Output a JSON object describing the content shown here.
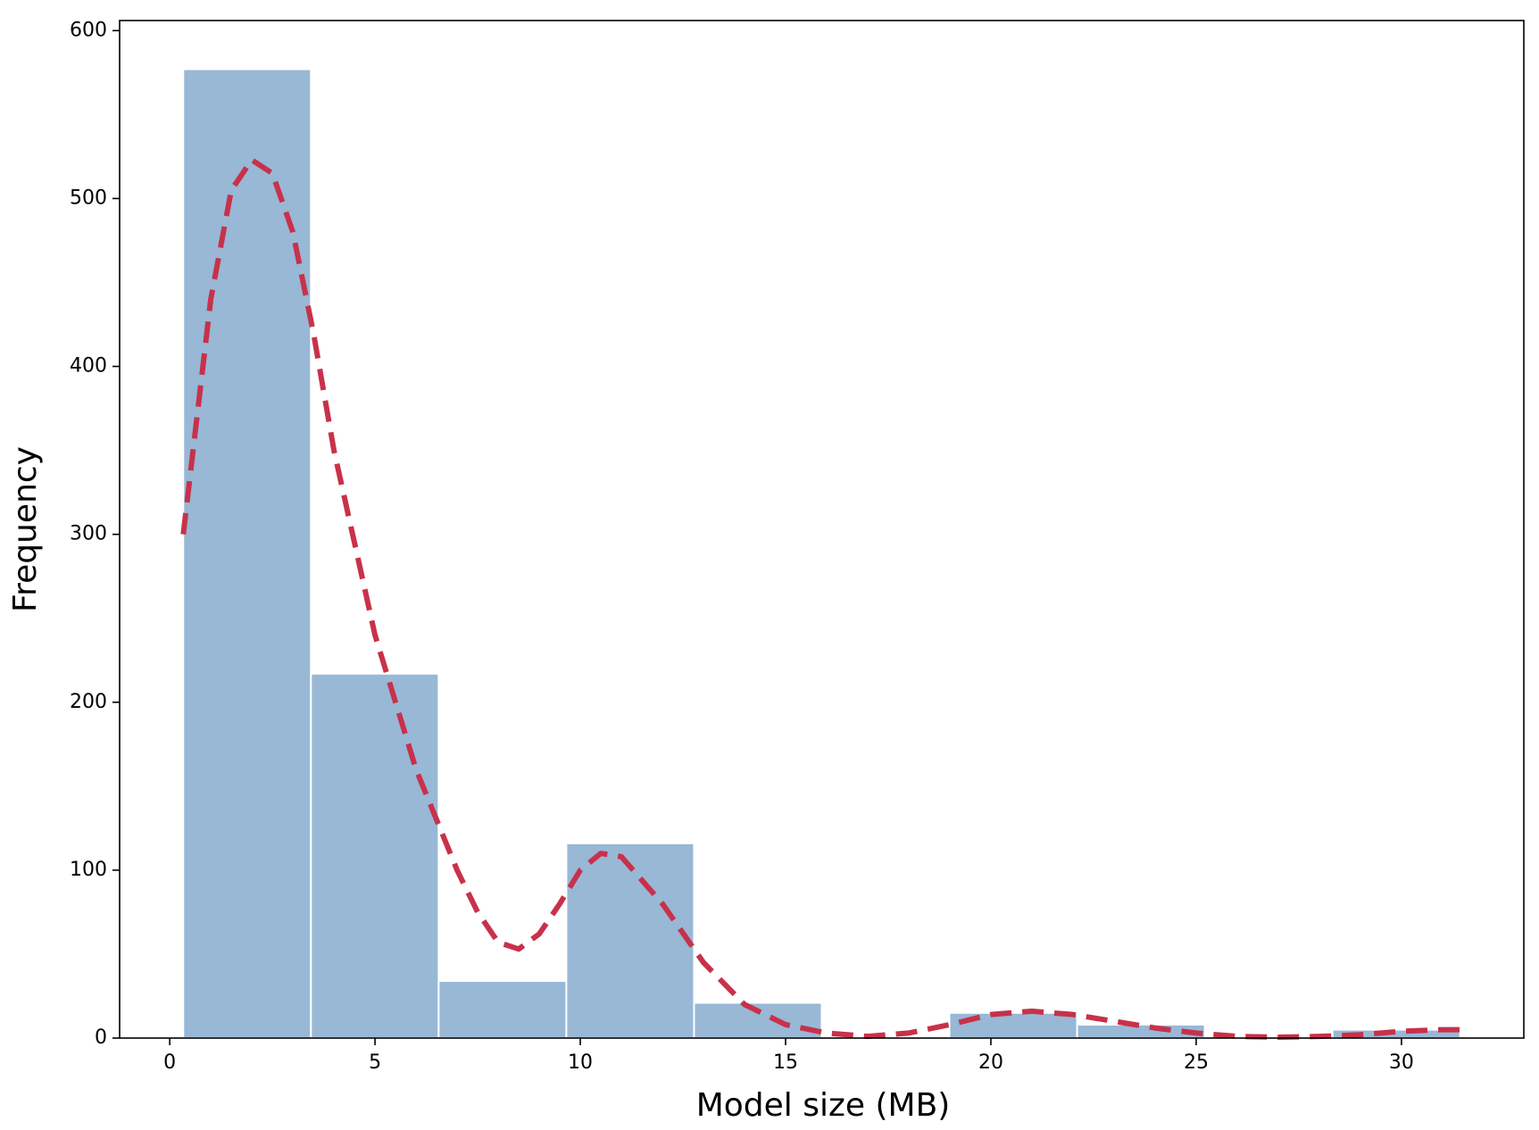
{
  "chart_data": {
    "type": "histogram",
    "xlabel": "Model size (MB)",
    "ylabel": "Frequency",
    "bins": [
      0.33,
      3.44,
      6.55,
      9.66,
      12.77,
      15.88,
      18.99,
      22.1,
      25.21,
      28.32,
      31.43
    ],
    "counts": [
      577,
      217,
      34,
      116,
      21,
      0,
      15,
      8,
      0,
      5
    ],
    "color": "#98b8d6",
    "edgecolor": "#ffffff",
    "kde": {
      "x": [
        0.33,
        1,
        1.5,
        2,
        2.5,
        3,
        3.5,
        4,
        5,
        6,
        7,
        7.5,
        8,
        8.5,
        9,
        9.5,
        10,
        10.5,
        11,
        12,
        13,
        14,
        15,
        16,
        17,
        18,
        19,
        20,
        21,
        22,
        23,
        24,
        25,
        26,
        27,
        28,
        29,
        30,
        31,
        31.43
      ],
      "values": [
        300,
        440,
        505,
        523,
        515,
        480,
        420,
        350,
        240,
        160,
        100,
        75,
        57,
        53,
        62,
        80,
        100,
        110,
        108,
        80,
        45,
        20,
        8,
        3,
        1,
        3,
        8,
        14,
        16,
        14,
        10,
        6,
        3,
        1,
        0.5,
        1,
        2,
        4,
        5,
        5
      ],
      "color": "#c8314a"
    },
    "xlim": [
      -1.22,
      32.98
    ],
    "ylim": [
      0,
      606
    ],
    "xticks": [
      0,
      5,
      10,
      15,
      20,
      25,
      30
    ],
    "yticks": [
      0,
      100,
      200,
      300,
      400,
      500,
      600
    ]
  }
}
